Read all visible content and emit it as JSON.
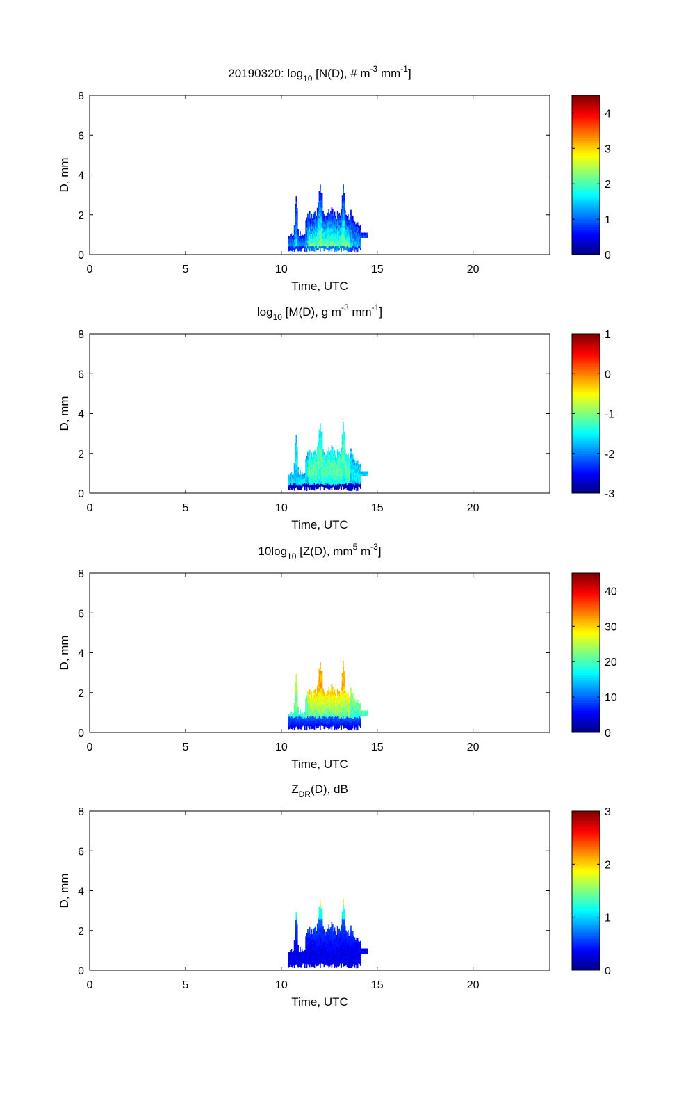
{
  "chart_data": [
    {
      "type": "heatmap",
      "title": {
        "pre": "20190320: log",
        "sub": "10",
        "mid": " [N(D), # m",
        "sup1": "-3",
        "mid2": " mm",
        "sup2": "-1",
        "post": "]"
      },
      "xlabel": "Time, UTC",
      "ylabel": "D, mm",
      "xlim": [
        0,
        24
      ],
      "ylim": [
        0,
        8
      ],
      "xticks": [
        "0",
        "5",
        "10",
        "15",
        "20"
      ],
      "yticks": [
        "0",
        "2",
        "4",
        "6",
        "8"
      ],
      "colorbar": {
        "min": 0,
        "max": 4.5,
        "ticks": [
          "0",
          "1",
          "2",
          "3",
          "4"
        ],
        "tick_values": [
          0,
          1,
          2,
          3,
          4
        ]
      },
      "data_extent": {
        "time_start": 10.3,
        "time_end": 14.5,
        "diameter_max": 3.7
      },
      "colormap": "jet",
      "field": "N"
    },
    {
      "type": "heatmap",
      "title": {
        "pre": "log",
        "sub": "10",
        "mid": " [M(D), g m",
        "sup1": "-3",
        "mid2": " mm",
        "sup2": "-1",
        "post": "]"
      },
      "xlabel": "Time, UTC",
      "ylabel": "D, mm",
      "xlim": [
        0,
        24
      ],
      "ylim": [
        0,
        8
      ],
      "xticks": [
        "0",
        "5",
        "10",
        "15",
        "20"
      ],
      "yticks": [
        "0",
        "2",
        "4",
        "6",
        "8"
      ],
      "colorbar": {
        "min": -3,
        "max": 1,
        "ticks": [
          "-3",
          "-2",
          "-1",
          "0",
          "1"
        ],
        "tick_values": [
          -3,
          -2,
          -1,
          0,
          1
        ]
      },
      "data_extent": {
        "time_start": 10.3,
        "time_end": 14.5,
        "diameter_max": 3.7
      },
      "colormap": "jet",
      "field": "M"
    },
    {
      "type": "heatmap",
      "title": {
        "pre": "10log",
        "sub": "10",
        "mid": " [Z(D),  mm",
        "sup1": "5",
        "mid2": " m",
        "sup2": "-3",
        "post": "]"
      },
      "xlabel": "Time, UTC",
      "ylabel": "D, mm",
      "xlim": [
        0,
        24
      ],
      "ylim": [
        0,
        8
      ],
      "xticks": [
        "0",
        "5",
        "10",
        "15",
        "20"
      ],
      "yticks": [
        "0",
        "2",
        "4",
        "6",
        "8"
      ],
      "colorbar": {
        "min": 0,
        "max": 45,
        "ticks": [
          "0",
          "10",
          "20",
          "30",
          "40"
        ],
        "tick_values": [
          0,
          10,
          20,
          30,
          40
        ]
      },
      "data_extent": {
        "time_start": 10.3,
        "time_end": 14.5,
        "diameter_max": 3.7
      },
      "colormap": "jet",
      "field": "Z"
    },
    {
      "type": "heatmap",
      "title": {
        "pre": "Z",
        "sub": "DR",
        "mid": "(D), dB",
        "sup1": "",
        "mid2": "",
        "sup2": "",
        "post": ""
      },
      "xlabel": "Time, UTC",
      "ylabel": "D, mm",
      "xlim": [
        0,
        24
      ],
      "ylim": [
        0,
        8
      ],
      "xticks": [
        "0",
        "5",
        "10",
        "15",
        "20"
      ],
      "yticks": [
        "0",
        "2",
        "4",
        "6",
        "8"
      ],
      "colorbar": {
        "min": 0,
        "max": 3,
        "ticks": [
          "0",
          "1",
          "2",
          "3"
        ],
        "tick_values": [
          0,
          1,
          2,
          3
        ]
      },
      "data_extent": {
        "time_start": 10.3,
        "time_end": 14.5,
        "diameter_max": 3.7
      },
      "colormap": "jet",
      "field": "ZDR"
    }
  ]
}
